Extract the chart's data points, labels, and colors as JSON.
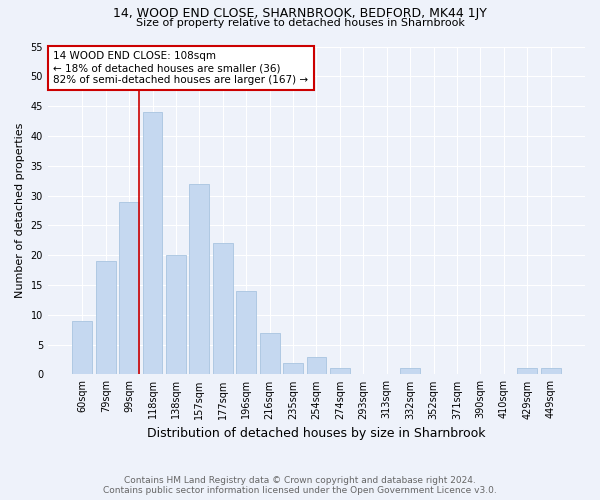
{
  "title_line1": "14, WOOD END CLOSE, SHARNBROOK, BEDFORD, MK44 1JY",
  "title_line2": "Size of property relative to detached houses in Sharnbrook",
  "xlabel": "Distribution of detached houses by size in Sharnbrook",
  "ylabel": "Number of detached properties",
  "footnote1": "Contains HM Land Registry data © Crown copyright and database right 2024.",
  "footnote2": "Contains public sector information licensed under the Open Government Licence v3.0.",
  "bar_labels": [
    "60sqm",
    "79sqm",
    "99sqm",
    "118sqm",
    "138sqm",
    "157sqm",
    "177sqm",
    "196sqm",
    "216sqm",
    "235sqm",
    "254sqm",
    "274sqm",
    "293sqm",
    "313sqm",
    "332sqm",
    "352sqm",
    "371sqm",
    "390sqm",
    "410sqm",
    "429sqm",
    "449sqm"
  ],
  "bar_values": [
    9,
    19,
    29,
    44,
    20,
    32,
    22,
    14,
    7,
    2,
    3,
    1,
    0,
    0,
    1,
    0,
    0,
    0,
    0,
    1,
    1
  ],
  "bar_color": "#c5d8f0",
  "bar_edge_color": "#a8c4e0",
  "vline_color": "#cc0000",
  "ylim": [
    0,
    55
  ],
  "annotation_text": "14 WOOD END CLOSE: 108sqm\n← 18% of detached houses are smaller (36)\n82% of semi-detached houses are larger (167) →",
  "annotation_box_color": "#ffffff",
  "annotation_box_edge_color": "#cc0000",
  "bg_color": "#eef2fa",
  "title_fontsize": 9,
  "subtitle_fontsize": 8,
  "ylabel_fontsize": 8,
  "xlabel_fontsize": 9,
  "tick_fontsize": 7,
  "annot_fontsize": 7.5,
  "footnote_fontsize": 6.5
}
